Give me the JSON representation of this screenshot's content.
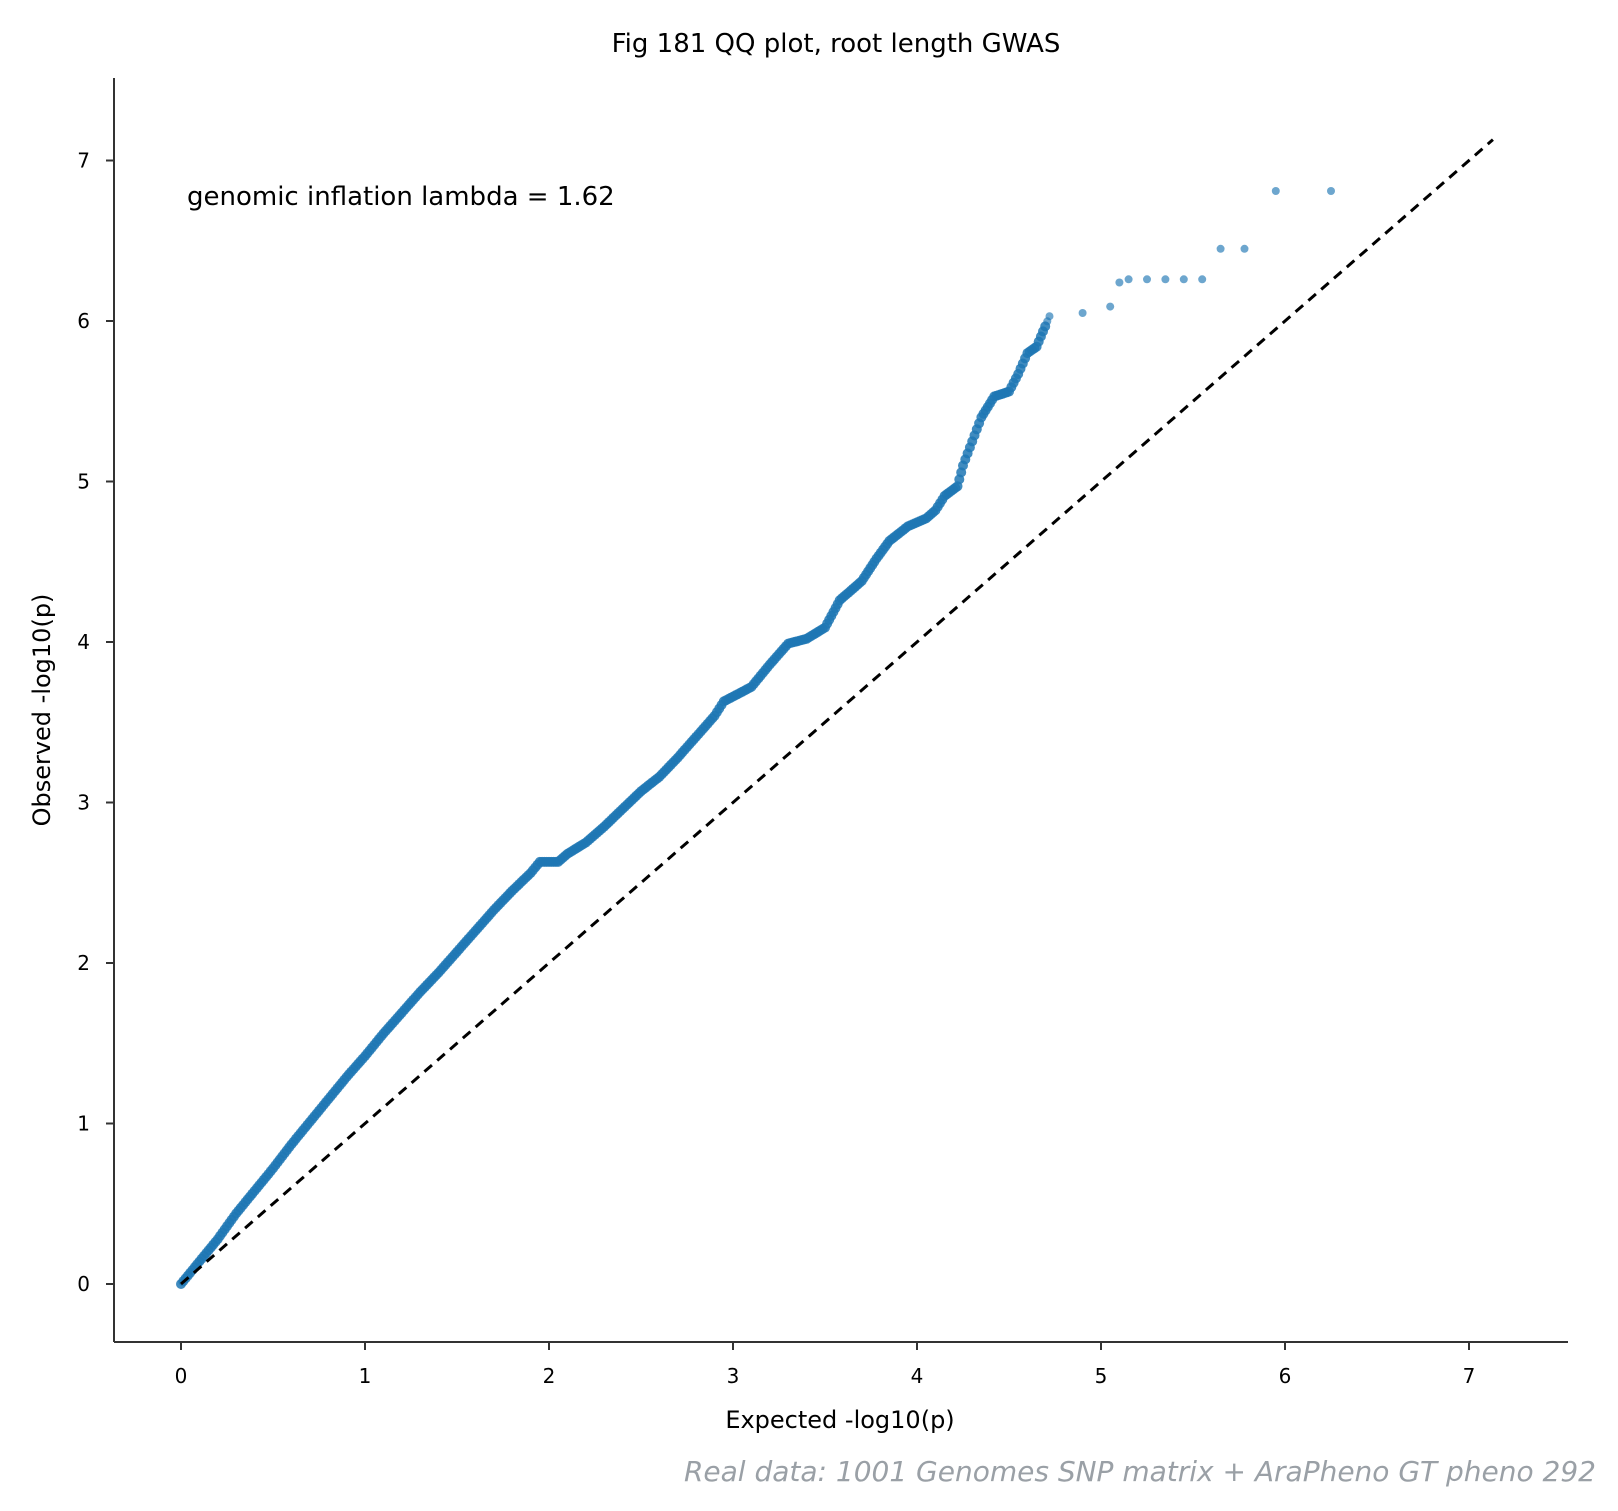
{
  "chart_data": {
    "type": "scatter",
    "title": "Fig 181  QQ plot, root length GWAS",
    "xlabel": "Expected -log10(p)",
    "ylabel": "Observed -log10(p)",
    "xlim": [
      -0.36,
      7.5
    ],
    "ylim": [
      -0.36,
      7.5
    ],
    "xticks": [
      0,
      1,
      2,
      3,
      4,
      5,
      6,
      7
    ],
    "yticks": [
      0,
      1,
      2,
      3,
      4,
      5,
      6,
      7
    ],
    "annotation": "genomic inflation lambda = 1.62",
    "source_note": "Real data: 1001 Genomes SNP matrix + AraPheno GT pheno 292",
    "grid": false,
    "point_color": "#1f77b4",
    "diagonal": {
      "style": "dashed",
      "color": "#000000",
      "x": [
        0,
        7.13
      ],
      "y": [
        0,
        7.13
      ]
    },
    "series": [
      {
        "points": [
          [
            0.0,
            0.0
          ],
          [
            0.1,
            0.14
          ],
          [
            0.2,
            0.28
          ],
          [
            0.3,
            0.44
          ],
          [
            0.4,
            0.58
          ],
          [
            0.5,
            0.72
          ],
          [
            0.6,
            0.87
          ],
          [
            0.7,
            1.01
          ],
          [
            0.8,
            1.15
          ],
          [
            0.9,
            1.29
          ],
          [
            1.0,
            1.42
          ],
          [
            1.1,
            1.56
          ],
          [
            1.2,
            1.69
          ],
          [
            1.3,
            1.82
          ],
          [
            1.4,
            1.94
          ],
          [
            1.5,
            2.07
          ],
          [
            1.6,
            2.2
          ],
          [
            1.7,
            2.33
          ],
          [
            1.8,
            2.45
          ],
          [
            1.9,
            2.56
          ],
          [
            1.95,
            2.63
          ],
          [
            2.05,
            2.63
          ],
          [
            2.1,
            2.68
          ],
          [
            2.2,
            2.75
          ],
          [
            2.3,
            2.85
          ],
          [
            2.4,
            2.96
          ],
          [
            2.5,
            3.07
          ],
          [
            2.6,
            3.16
          ],
          [
            2.7,
            3.28
          ],
          [
            2.8,
            3.41
          ],
          [
            2.9,
            3.54
          ],
          [
            2.95,
            3.63
          ],
          [
            3.05,
            3.69
          ],
          [
            3.1,
            3.72
          ],
          [
            3.2,
            3.86
          ],
          [
            3.3,
            3.99
          ],
          [
            3.4,
            4.02
          ],
          [
            3.5,
            4.09
          ],
          [
            3.58,
            4.26
          ],
          [
            3.7,
            4.38
          ],
          [
            3.78,
            4.52
          ],
          [
            3.85,
            4.63
          ],
          [
            3.95,
            4.72
          ],
          [
            4.05,
            4.77
          ],
          [
            4.1,
            4.82
          ],
          [
            4.15,
            4.91
          ],
          [
            4.22,
            4.97
          ],
          [
            4.25,
            5.1
          ],
          [
            4.3,
            5.25
          ],
          [
            4.35,
            5.4
          ],
          [
            4.42,
            5.53
          ],
          [
            4.5,
            5.56
          ],
          [
            4.55,
            5.67
          ],
          [
            4.6,
            5.8
          ],
          [
            4.65,
            5.84
          ],
          [
            4.72,
            6.03
          ],
          [
            4.9,
            6.05
          ],
          [
            5.05,
            6.09
          ],
          [
            5.1,
            6.24
          ],
          [
            5.15,
            6.26
          ],
          [
            5.25,
            6.26
          ],
          [
            5.35,
            6.26
          ],
          [
            5.45,
            6.26
          ],
          [
            5.55,
            6.26
          ],
          [
            5.65,
            6.45
          ],
          [
            5.78,
            6.45
          ],
          [
            5.95,
            6.81
          ],
          [
            6.25,
            6.81
          ]
        ]
      }
    ]
  }
}
